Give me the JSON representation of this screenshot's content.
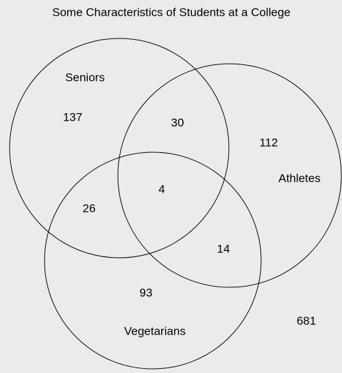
{
  "title": "Some Characteristics of Students at a College",
  "sets": [
    {
      "label": "Seniors"
    },
    {
      "label": "Athletes"
    },
    {
      "label": "Vegetarians"
    }
  ],
  "regions": [
    137,
    30,
    112,
    4,
    26,
    14,
    93
  ],
  "outside": 681
}
